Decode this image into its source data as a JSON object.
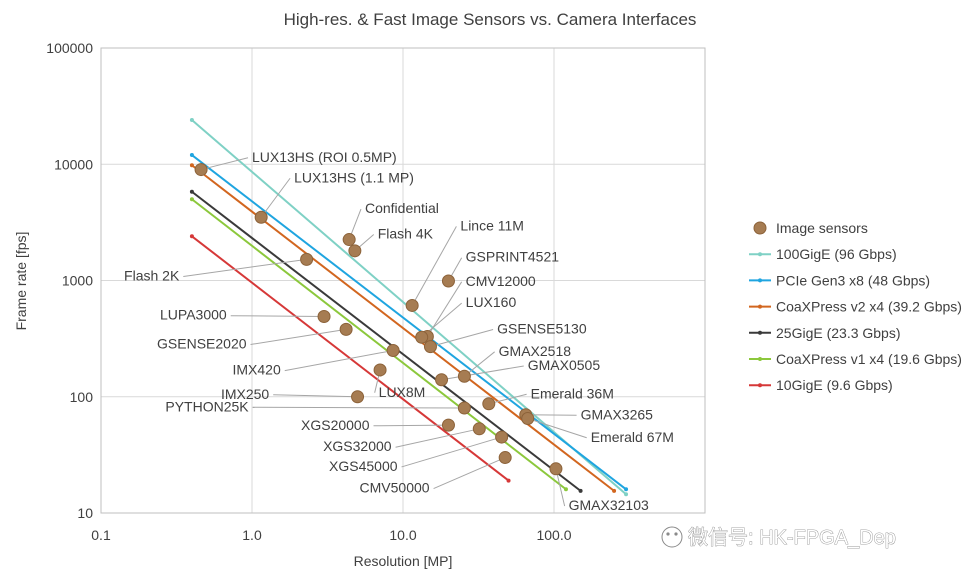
{
  "chart_data": {
    "type": "scatter",
    "title": "High-res. & Fast Image Sensors vs. Camera Interfaces",
    "xlabel": "Resolution [MP]",
    "ylabel": "Frame rate [fps]",
    "xscale": "log",
    "yscale": "log",
    "xlim": [
      0.1,
      1000
    ],
    "ylim": [
      10,
      100000
    ],
    "xticks": [
      {
        "v": 0.1,
        "label": "0.1"
      },
      {
        "v": 1,
        "label": "1.0"
      },
      {
        "v": 10,
        "label": "10.0"
      },
      {
        "v": 100,
        "label": "100.0"
      }
    ],
    "yticks": [
      {
        "v": 10,
        "label": "10"
      },
      {
        "v": 100,
        "label": "100"
      },
      {
        "v": 1000,
        "label": "1000"
      },
      {
        "v": 10000,
        "label": "10000"
      },
      {
        "v": 100000,
        "label": "100000"
      }
    ],
    "grid": true,
    "legend_position": "right",
    "series": [
      {
        "name": "Image sensors",
        "style": "points",
        "color": "#a67c52",
        "points": [
          {
            "label": "LUX13HS (ROI 0.5MP)",
            "x": 0.46,
            "y": 9000,
            "lx": 1.0,
            "ly": 10500
          },
          {
            "label": "LUX13HS (1.1 MP)",
            "x": 1.15,
            "y": 3500,
            "lx": 1.9,
            "ly": 7000
          },
          {
            "label": "Confidential",
            "x": 4.4,
            "y": 2250,
            "lx": 5.6,
            "ly": 3800
          },
          {
            "label": "Flash 4K",
            "x": 4.8,
            "y": 1800,
            "lx": 6.8,
            "ly": 2300
          },
          {
            "label": "Flash 2K",
            "x": 2.3,
            "y": 1520,
            "lx": 0.33,
            "ly": 1000
          },
          {
            "label": "Lince 11M",
            "x": 11.5,
            "y": 610,
            "lx": 24,
            "ly": 2700
          },
          {
            "label": "GSPRINT4521",
            "x": 20,
            "y": 990,
            "lx": 26,
            "ly": 1450
          },
          {
            "label": "CMV12000",
            "x": 14.5,
            "y": 330,
            "lx": 26,
            "ly": 900
          },
          {
            "label": "LUX160",
            "x": 13.3,
            "y": 325,
            "lx": 26,
            "ly": 590
          },
          {
            "label": "LUPA3000",
            "x": 3,
            "y": 490,
            "lx": 0.68,
            "ly": 460
          },
          {
            "label": "GSENSE5130",
            "x": 15.2,
            "y": 270,
            "lx": 42,
            "ly": 350
          },
          {
            "label": "GSENSE2020",
            "x": 4.2,
            "y": 380,
            "lx": 0.92,
            "ly": 260
          },
          {
            "label": "GMAX2518",
            "x": 25.5,
            "y": 150,
            "lx": 43,
            "ly": 225
          },
          {
            "label": "IMX420",
            "x": 8.6,
            "y": 250,
            "lx": 1.55,
            "ly": 155
          },
          {
            "label": "GMAX0505",
            "x": 18,
            "y": 140,
            "lx": 67,
            "ly": 170
          },
          {
            "label": "LUX8M",
            "x": 7.05,
            "y": 170,
            "lx": 6.9,
            "ly": 100
          },
          {
            "label": "IMX250",
            "x": 5,
            "y": 100,
            "lx": 1.3,
            "ly": 96
          },
          {
            "label": "PYTHON25K",
            "x": 25.5,
            "y": 80,
            "lx": 0.95,
            "ly": 75
          },
          {
            "label": "Emerald 36M",
            "x": 37,
            "y": 87,
            "lx": 70,
            "ly": 97
          },
          {
            "label": "XGS20000",
            "x": 20,
            "y": 57,
            "lx": 6,
            "ly": 52
          },
          {
            "label": "GMAX3265",
            "x": 65,
            "y": 70,
            "lx": 150,
            "ly": 64
          },
          {
            "label": "Emerald 67M",
            "x": 67,
            "y": 65,
            "lx": 175,
            "ly": 41
          },
          {
            "label": "XGS32000",
            "x": 32,
            "y": 53,
            "lx": 8.4,
            "ly": 34
          },
          {
            "label": "XGS45000",
            "x": 45,
            "y": 45,
            "lx": 9.2,
            "ly": 23
          },
          {
            "label": "CMV50000",
            "x": 47.5,
            "y": 30,
            "lx": 15,
            "ly": 15
          },
          {
            "label": "GMAX32103",
            "x": 103,
            "y": 24,
            "lx": 125,
            "ly": 10.6
          }
        ]
      },
      {
        "name": "100GigE (96 Gbps)",
        "style": "line",
        "color": "#7fd1c5",
        "x": [
          0.4,
          300
        ],
        "y": [
          24000,
          14.5
        ]
      },
      {
        "name": "PCIe Gen3 x8 (48 Gbps)",
        "style": "line",
        "color": "#1fa5e0",
        "x": [
          0.4,
          300
        ],
        "y": [
          12000,
          16
        ]
      },
      {
        "name": "CoaXPress v2 x4 (39.2 Gbps)",
        "style": "line",
        "color": "#d2661f",
        "x": [
          0.4,
          250
        ],
        "y": [
          9800,
          15.5
        ]
      },
      {
        "name": "25GigE (23.3 Gbps)",
        "style": "line",
        "color": "#3a3a3a",
        "x": [
          0.4,
          150
        ],
        "y": [
          5800,
          15.5
        ]
      },
      {
        "name": "CoaXPress v1 x4 (19.6 Gbps)",
        "style": "line",
        "color": "#8cc83c",
        "x": [
          0.4,
          120
        ],
        "y": [
          5000,
          16
        ]
      },
      {
        "name": "10GigE (9.6 Gbps)",
        "style": "line",
        "color": "#d63838",
        "x": [
          0.4,
          50
        ],
        "y": [
          2400,
          19
        ]
      }
    ]
  },
  "watermark": "微信号: HK-FPGA_Dep"
}
